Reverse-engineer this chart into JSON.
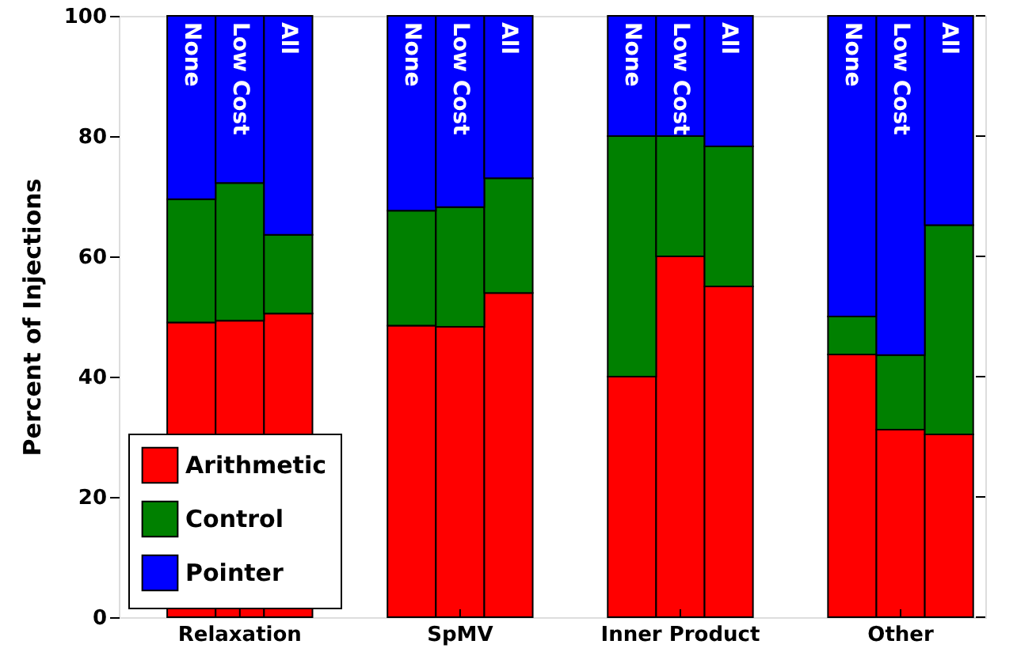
{
  "chart_data": {
    "type": "bar",
    "stacked": true,
    "ylabel": "Percent of Injections",
    "categories": [
      "None",
      "Low Cost",
      "All",
      "None",
      "Low Cost",
      "All",
      "None",
      "Low Cost",
      "All",
      "None",
      "Low Cost",
      "All"
    ],
    "annotations": [
      "Relaxation",
      "SpMV",
      "Inner Product",
      "Other"
    ],
    "series": [
      {
        "name": "Arithmetic",
        "color": "#ff0000",
        "values": [
          49,
          49.3,
          50.5,
          48.5,
          48.3,
          53.9,
          40,
          60,
          55,
          43.7,
          31.2,
          30.4
        ]
      },
      {
        "name": "Control",
        "color": "#008000",
        "values": [
          20.5,
          22.9,
          13.1,
          19.1,
          19.9,
          19.1,
          40,
          20,
          23.3,
          6.3,
          12.4,
          34.8
        ]
      },
      {
        "name": "Pointer",
        "color": "#0000ff",
        "values": [
          30.5,
          27.8,
          36.4,
          32.4,
          31.8,
          27,
          20,
          20,
          21.7,
          50,
          56.4,
          34.8
        ]
      }
    ],
    "ylim": [
      0,
      100
    ],
    "yticks": [
      0,
      20,
      40,
      60,
      80,
      100
    ],
    "legend": "bottom left",
    "grid": false
  }
}
